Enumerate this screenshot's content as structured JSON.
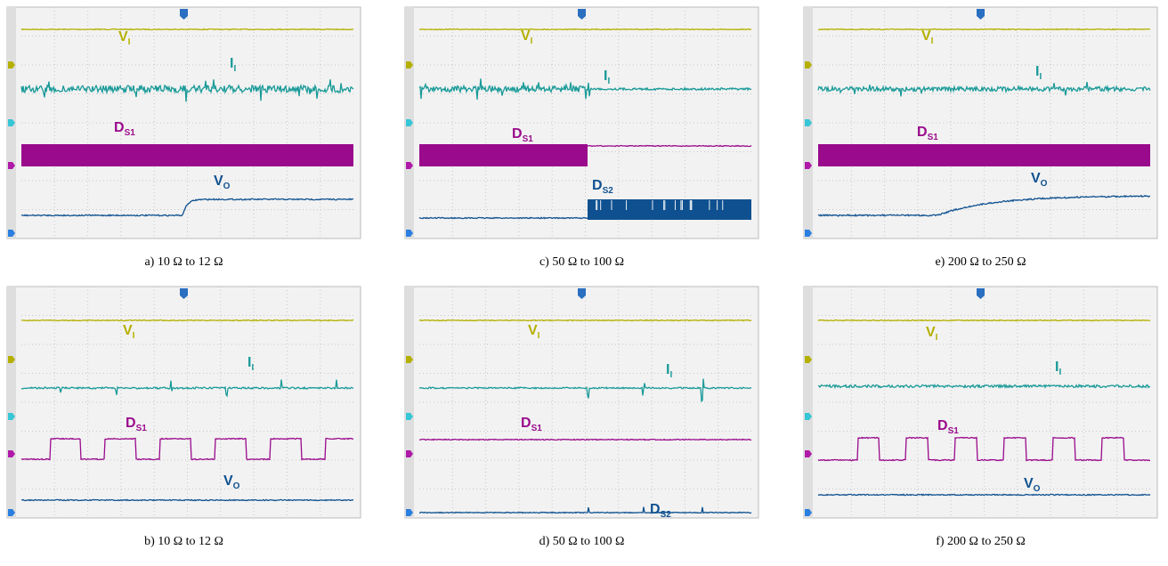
{
  "panels": [
    {
      "caption": "a) 10 Ω to 12 Ω",
      "labels": [
        {
          "main": "V",
          "sub": "I"
        },
        {
          "main": "I",
          "sub": "I"
        },
        {
          "main": "D",
          "sub": "S1"
        },
        {
          "main": "V",
          "sub": "O"
        }
      ]
    },
    {
      "caption": "c) 50 Ω to 100 Ω",
      "labels": [
        {
          "main": "V",
          "sub": "I"
        },
        {
          "main": "I",
          "sub": "I"
        },
        {
          "main": "D",
          "sub": "S1"
        },
        {
          "main": "D",
          "sub": "S2"
        }
      ]
    },
    {
      "caption": "e) 200 Ω to 250 Ω",
      "labels": [
        {
          "main": "V",
          "sub": "I"
        },
        {
          "main": "I",
          "sub": "I"
        },
        {
          "main": "D",
          "sub": "S1"
        },
        {
          "main": "V",
          "sub": "O"
        }
      ]
    },
    {
      "caption": "b) 10 Ω to 12 Ω",
      "labels": [
        {
          "main": "V",
          "sub": "I"
        },
        {
          "main": "I",
          "sub": "I"
        },
        {
          "main": "D",
          "sub": "S1"
        },
        {
          "main": "V",
          "sub": "O"
        }
      ]
    },
    {
      "caption": "d) 50 Ω to 100 Ω",
      "labels": [
        {
          "main": "V",
          "sub": "I"
        },
        {
          "main": "I",
          "sub": "I"
        },
        {
          "main": "D",
          "sub": "S1"
        },
        {
          "main": "D",
          "sub": "S2"
        }
      ]
    },
    {
      "caption": "f) 200 Ω to 250 Ω",
      "labels": [
        {
          "main": "V",
          "sub": "I"
        },
        {
          "main": "I",
          "sub": "I"
        },
        {
          "main": "D",
          "sub": "S1"
        },
        {
          "main": "V",
          "sub": "O"
        }
      ]
    }
  ]
}
